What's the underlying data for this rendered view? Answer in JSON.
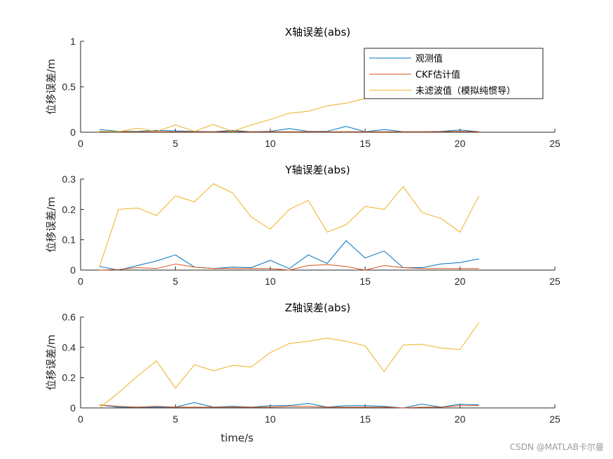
{
  "watermark": "CSDN @MATLAB卡尔曼",
  "legend": {
    "entries": [
      "观测值",
      "CKF估计值",
      "未滤波值（模拟纯惯导）"
    ]
  },
  "colors": {
    "observed": "#0072BD",
    "ckf": "#D95319",
    "unfiltered": "#EDB120",
    "axis": "#262626"
  },
  "chart_data": [
    {
      "type": "line",
      "title": "X轴误差(abs)",
      "ylabel": "位移误差/m",
      "xlabel": "",
      "xlim": [
        0,
        25
      ],
      "ylim": [
        0,
        1
      ],
      "xticks": [
        0,
        5,
        10,
        15,
        20,
        25
      ],
      "yticks": [
        0,
        0.5,
        1
      ],
      "ytick_labels": [
        "0",
        "0.5",
        "1"
      ],
      "legend_position": "top-right",
      "x": [
        1,
        2,
        3,
        4,
        5,
        6,
        7,
        8,
        9,
        10,
        11,
        12,
        13,
        14,
        15,
        16,
        17,
        18,
        19,
        20,
        21
      ],
      "series": [
        {
          "name": "观测值",
          "values": [
            0.03,
            0.01,
            0.01,
            0.02,
            0.015,
            0.01,
            0.005,
            0.02,
            0.005,
            0.01,
            0.04,
            0.01,
            0.01,
            0.065,
            0.005,
            0.03,
            0.005,
            0.005,
            0.01,
            0.025,
            0.005
          ]
        },
        {
          "name": "CKF估计值",
          "values": [
            0.01,
            0.005,
            0.005,
            0.005,
            0.005,
            0.005,
            0.005,
            0.01,
            0.005,
            0.005,
            0.005,
            0.005,
            0.005,
            0.005,
            0.005,
            0.005,
            0.005,
            0.005,
            0.005,
            0.01,
            0.005
          ]
        },
        {
          "name": "未滤波值（模拟纯惯导）",
          "values": [
            0.01,
            0.005,
            0.045,
            0.01,
            0.08,
            0.01,
            0.085,
            0.01,
            0.08,
            0.14,
            0.21,
            0.23,
            0.29,
            0.32,
            0.37,
            0.44,
            0.5,
            0.55,
            0.58,
            0.62,
            0.66
          ]
        }
      ]
    },
    {
      "type": "line",
      "title": "Y轴误差(abs)",
      "ylabel": "位移误差/m",
      "xlabel": "",
      "xlim": [
        0,
        25
      ],
      "ylim": [
        0,
        0.3
      ],
      "xticks": [
        0,
        5,
        10,
        15,
        20,
        25
      ],
      "yticks": [
        0,
        0.1,
        0.2,
        0.3
      ],
      "ytick_labels": [
        "0",
        "0.1",
        "0.2",
        "0.3"
      ],
      "x": [
        1,
        2,
        3,
        4,
        5,
        6,
        7,
        8,
        9,
        10,
        11,
        12,
        13,
        14,
        15,
        16,
        17,
        18,
        19,
        20,
        21
      ],
      "series": [
        {
          "name": "观测值",
          "values": [
            0.012,
            0.0,
            0.015,
            0.03,
            0.05,
            0.01,
            0.005,
            0.01,
            0.008,
            0.032,
            0.005,
            0.05,
            0.022,
            0.097,
            0.04,
            0.063,
            0.008,
            0.008,
            0.02,
            0.025,
            0.037
          ]
        },
        {
          "name": "CKF估计值",
          "values": [
            0.0,
            0.002,
            0.008,
            0.005,
            0.02,
            0.01,
            0.005,
            0.005,
            0.005,
            0.005,
            0.0,
            0.015,
            0.018,
            0.012,
            0.0,
            0.015,
            0.008,
            0.005,
            0.005,
            0.005,
            0.005
          ]
        },
        {
          "name": "未滤波值（模拟纯惯导）",
          "values": [
            0.012,
            0.2,
            0.205,
            0.18,
            0.245,
            0.225,
            0.285,
            0.255,
            0.175,
            0.135,
            0.2,
            0.23,
            0.125,
            0.15,
            0.21,
            0.2,
            0.275,
            0.19,
            0.17,
            0.125,
            0.245
          ]
        }
      ]
    },
    {
      "type": "line",
      "title": "Z轴误差(abs)",
      "ylabel": "位移误差/m",
      "xlabel": "time/s",
      "xlim": [
        0,
        25
      ],
      "ylim": [
        0,
        0.6
      ],
      "xticks": [
        0,
        5,
        10,
        15,
        20,
        25
      ],
      "yticks": [
        0,
        0.2,
        0.4,
        0.6
      ],
      "ytick_labels": [
        "0",
        "0.2",
        "0.4",
        "0.6"
      ],
      "x": [
        1,
        2,
        3,
        4,
        5,
        6,
        7,
        8,
        9,
        10,
        11,
        12,
        13,
        14,
        15,
        16,
        17,
        18,
        19,
        20,
        21
      ],
      "series": [
        {
          "name": "观测值",
          "values": [
            0.02,
            0.005,
            0.005,
            0.005,
            0.005,
            0.035,
            0.005,
            0.01,
            0.005,
            0.015,
            0.015,
            0.03,
            0.005,
            0.015,
            0.015,
            0.01,
            0.0,
            0.025,
            0.005,
            0.025,
            0.02
          ]
        },
        {
          "name": "CKF估计值",
          "values": [
            0.02,
            0.01,
            0.005,
            0.01,
            0.005,
            0.005,
            0.005,
            0.005,
            0.005,
            0.005,
            0.01,
            0.01,
            0.005,
            0.005,
            0.005,
            0.005,
            0.0,
            0.005,
            0.005,
            0.015,
            0.015
          ]
        },
        {
          "name": "未滤波值（模拟纯惯导）",
          "values": [
            0.0,
            0.1,
            0.21,
            0.31,
            0.13,
            0.285,
            0.245,
            0.28,
            0.27,
            0.365,
            0.425,
            0.44,
            0.46,
            0.44,
            0.41,
            0.24,
            0.415,
            0.42,
            0.395,
            0.385,
            0.565
          ]
        }
      ]
    }
  ]
}
